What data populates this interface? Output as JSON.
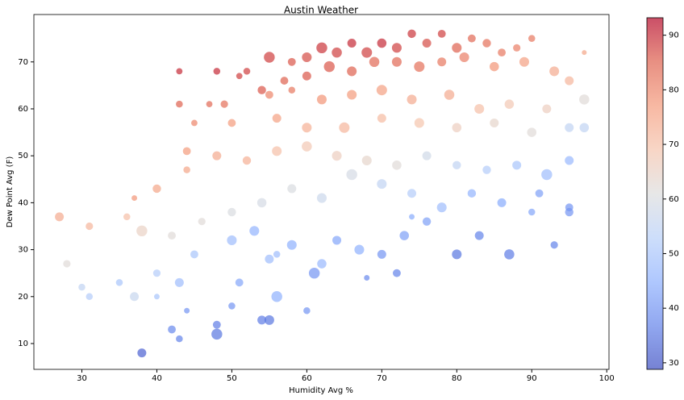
{
  "chart_data": {
    "type": "scatter",
    "title": "Austin Weather",
    "x_label": "Humidity Avg %",
    "y_label": "Dew Point Avg (F)",
    "xlim": [
      23.6,
      100.3
    ],
    "ylim": [
      4.5,
      80.1
    ],
    "xticks": [
      30,
      40,
      50,
      60,
      70,
      80,
      90,
      100
    ],
    "yticks": [
      10,
      20,
      30,
      40,
      50,
      60,
      70
    ],
    "clim": [
      28.8,
      93.2
    ],
    "cticks": [
      30,
      40,
      50,
      60,
      70,
      80,
      90
    ],
    "colormap": [
      "#3b4cc0",
      "#6282ea",
      "#8db0fe",
      "#b8d0f9",
      "#dddddd",
      "#f5c4ad",
      "#f49a7b",
      "#de604d",
      "#b40426"
    ],
    "opacity": 0.7,
    "grid": false,
    "x": [
      55,
      58,
      60,
      62,
      64,
      66,
      68,
      70,
      72,
      74,
      76,
      78,
      80,
      82,
      84,
      86,
      88,
      90,
      54,
      57,
      60,
      63,
      66,
      69,
      72,
      75,
      78,
      81,
      85,
      89,
      93,
      95,
      97,
      43,
      48,
      51,
      52,
      43,
      47,
      49,
      55,
      58,
      62,
      66,
      70,
      74,
      79,
      83,
      87,
      92,
      97,
      45,
      50,
      56,
      60,
      65,
      70,
      75,
      80,
      85,
      90,
      95,
      97,
      37,
      40,
      44,
      44,
      48,
      52,
      56,
      60,
      64,
      68,
      72,
      76,
      80,
      84,
      88,
      92,
      95,
      27,
      31,
      36,
      38,
      42,
      46,
      50,
      54,
      58,
      62,
      66,
      70,
      74,
      78,
      82,
      86,
      91,
      95,
      28,
      30,
      31,
      35,
      37,
      40,
      43,
      45,
      50,
      53,
      55,
      58,
      62,
      64,
      67,
      70,
      73,
      76,
      80,
      83,
      87,
      93,
      95,
      40,
      44,
      42,
      43,
      48,
      48,
      50,
      51,
      54,
      55,
      56,
      60,
      38,
      61,
      68,
      72,
      56,
      74,
      90
    ],
    "y": [
      71,
      70,
      71,
      73,
      72,
      74,
      72,
      74,
      73,
      76,
      74,
      76,
      73,
      75,
      74,
      72,
      73,
      75,
      64,
      66,
      67,
      69,
      68,
      70,
      70,
      69,
      70,
      71,
      69,
      70,
      68,
      66,
      72,
      68,
      68,
      67,
      68,
      61,
      61,
      61,
      63,
      64,
      62,
      63,
      64,
      62,
      63,
      60,
      61,
      60,
      62,
      57,
      57,
      58,
      56,
      56,
      58,
      57,
      56,
      57,
      55,
      56,
      56,
      41,
      43,
      47,
      51,
      50,
      49,
      51,
      52,
      50,
      49,
      48,
      50,
      48,
      47,
      48,
      46,
      49,
      37,
      35,
      37,
      34,
      33,
      36,
      38,
      40,
      43,
      41,
      46,
      44,
      42,
      39,
      42,
      40,
      42,
      38,
      27,
      22,
      20,
      23,
      20,
      25,
      23,
      29,
      32,
      34,
      28,
      31,
      27,
      32,
      30,
      29,
      33,
      36,
      29,
      33,
      29,
      31,
      39,
      20,
      17,
      13,
      11,
      12,
      14,
      18,
      23,
      15,
      15,
      20,
      17,
      8,
      25,
      24,
      25,
      29,
      37,
      38
    ],
    "sizes": [
      150,
      80,
      120,
      150,
      130,
      100,
      140,
      110,
      120,
      90,
      100,
      80,
      120,
      80,
      90,
      80,
      70,
      60,
      90,
      80,
      100,
      150,
      120,
      130,
      120,
      140,
      100,
      120,
      110,
      120,
      120,
      100,
      30,
      50,
      60,
      50,
      60,
      60,
      50,
      70,
      80,
      60,
      120,
      120,
      140,
      120,
      130,
      120,
      110,
      100,
      130,
      50,
      80,
      100,
      120,
      140,
      100,
      120,
      110,
      100,
      110,
      100,
      110,
      40,
      90,
      60,
      80,
      100,
      90,
      120,
      130,
      120,
      120,
      110,
      100,
      90,
      90,
      100,
      150,
      100,
      100,
      70,
      60,
      150,
      80,
      70,
      90,
      110,
      100,
      120,
      150,
      120,
      100,
      120,
      90,
      100,
      80,
      90,
      70,
      60,
      60,
      60,
      100,
      70,
      100,
      80,
      120,
      120,
      100,
      120,
      110,
      100,
      120,
      100,
      110,
      90,
      120,
      100,
      130,
      70,
      80,
      40,
      40,
      80,
      60,
      150,
      80,
      60,
      80,
      100,
      120,
      150,
      60,
      100,
      150,
      40,
      80,
      60,
      40,
      60
    ],
    "c": [
      88,
      86,
      87,
      89,
      88,
      90,
      88,
      90,
      88,
      89,
      87,
      88,
      85,
      84,
      83,
      82,
      81,
      82,
      86,
      85,
      86,
      86,
      85,
      84,
      84,
      83,
      82,
      81,
      78,
      76,
      74,
      72,
      75,
      90,
      90,
      88,
      88,
      85,
      84,
      83,
      80,
      82,
      78,
      77,
      76,
      74,
      74,
      70,
      68,
      66,
      62,
      80,
      77,
      76,
      73,
      72,
      71,
      69,
      66,
      64,
      62,
      55,
      55,
      78,
      75,
      75,
      77,
      74,
      73,
      70,
      68,
      66,
      64,
      62,
      58,
      55,
      52,
      50,
      48,
      47,
      74,
      72,
      70,
      65,
      62,
      62,
      60,
      59,
      60,
      57,
      59,
      55,
      52,
      48,
      46,
      44,
      42,
      40,
      62,
      55,
      52,
      50,
      56,
      52,
      48,
      50,
      48,
      46,
      48,
      45,
      47,
      43,
      45,
      40,
      42,
      42,
      35,
      37,
      36,
      37,
      40,
      50,
      40,
      38,
      37,
      35,
      36,
      40,
      43,
      36,
      35,
      45,
      40,
      32,
      40,
      38,
      37,
      48,
      44,
      43
    ]
  }
}
